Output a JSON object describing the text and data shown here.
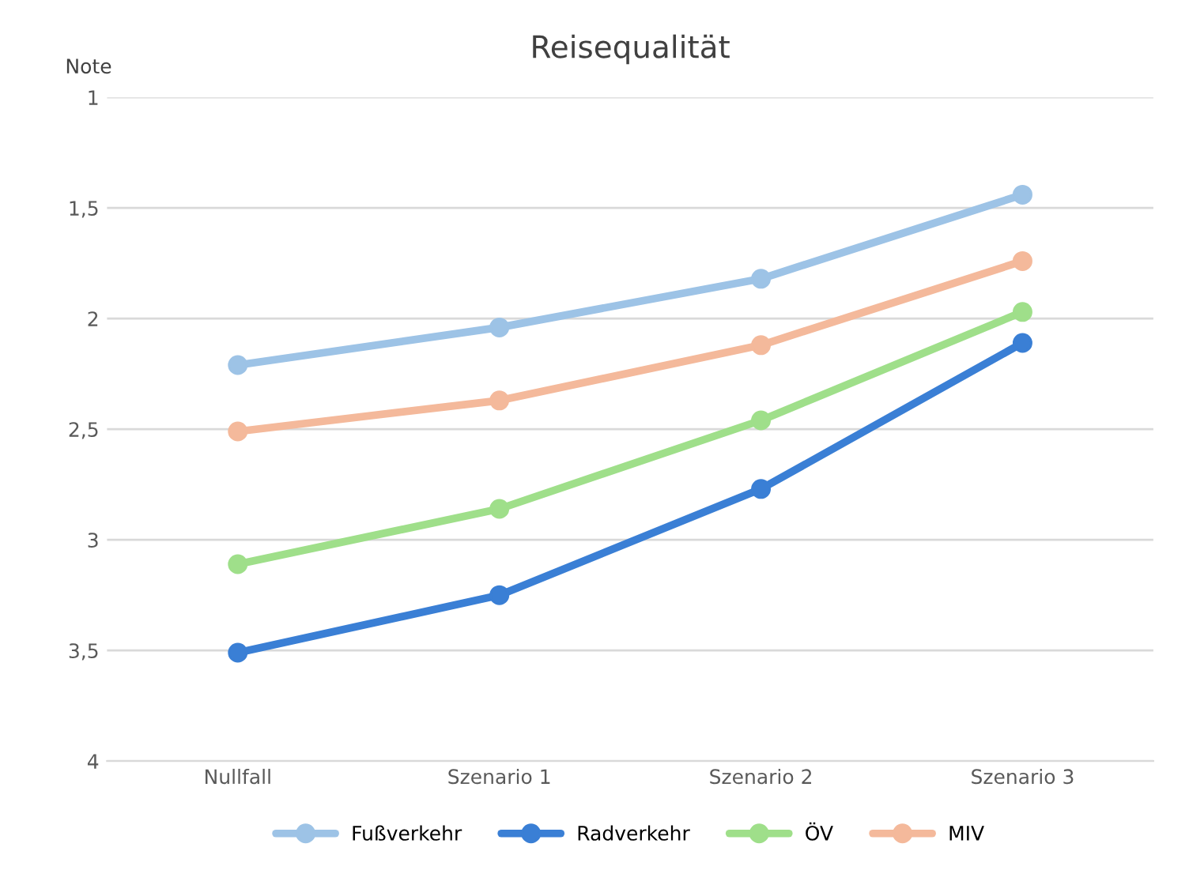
{
  "chart_data": {
    "type": "line",
    "title": "Reisequalität",
    "ylabel": "Note",
    "categories": [
      "Nullfall",
      "Szenario 1",
      "Szenario 2",
      "Szenario 3"
    ],
    "series": [
      {
        "name": "Fußverkehr",
        "color": "#9dc3e6",
        "values": [
          2.21,
          2.04,
          1.82,
          1.44
        ]
      },
      {
        "name": "Radverkehr",
        "color": "#3a7fd5",
        "values": [
          3.51,
          3.25,
          2.77,
          2.11
        ]
      },
      {
        "name": "ÖV",
        "color": "#9fdf8a",
        "values": [
          3.11,
          2.86,
          2.46,
          1.97
        ]
      },
      {
        "name": "MIV",
        "color": "#f4b99b",
        "values": [
          2.51,
          2.37,
          2.12,
          1.74
        ]
      }
    ],
    "ylim": [
      4,
      1
    ],
    "yticks": [
      {
        "value": 1,
        "label": "1"
      },
      {
        "value": 1.5,
        "label": "1,5"
      },
      {
        "value": 2,
        "label": "2"
      },
      {
        "value": 2.5,
        "label": "2,5"
      },
      {
        "value": 3,
        "label": "3"
      },
      {
        "value": 3.5,
        "label": "3,5"
      },
      {
        "value": 4,
        "label": "4"
      }
    ],
    "grid": "y",
    "legend": "bottom",
    "marker": "circle",
    "line_style": "solid"
  }
}
